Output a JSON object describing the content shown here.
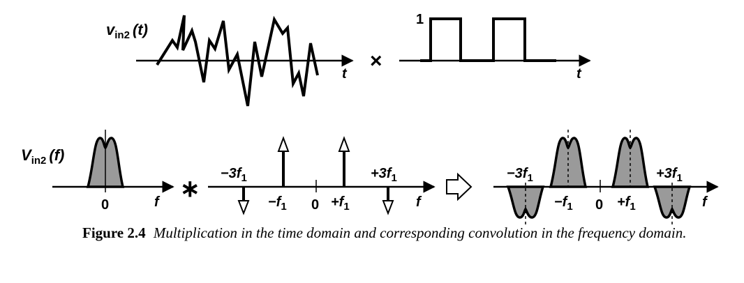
{
  "time_domain": {
    "signal_label_main": "v",
    "signal_label_sub": "in2",
    "signal_label_arg": "(t)",
    "time_axis_label_left": "t",
    "multiply_symbol": "×",
    "pulse_amplitude_label": "1",
    "time_axis_label_right": "t"
  },
  "frequency_domain": {
    "spectrum_label_main": "V",
    "spectrum_label_sub": "in2",
    "spectrum_label_arg": "(f)",
    "origin_label_left": "0",
    "freq_axis_label_left": "f",
    "convolve_symbol": "∗",
    "impulse_labels": {
      "neg3": "−3f",
      "neg3_sub": "1",
      "neg1": "−f",
      "neg1_sub": "1",
      "zero": "0",
      "pos1": "+f",
      "pos1_sub": "1",
      "pos3": "+3f",
      "pos3_sub": "1"
    },
    "freq_axis_label_middle": "f",
    "result_labels": {
      "neg3": "−3f",
      "neg3_sub": "1",
      "neg1": "−f",
      "neg1_sub": "1",
      "zero": "0",
      "pos1": "+f",
      "pos1_sub": "1",
      "pos3": "+3f",
      "pos3_sub": "1"
    },
    "freq_axis_label_right": "f"
  },
  "caption": {
    "figure_label": "Figure 2.4",
    "text": "Multiplication in the time domain and corresponding convolution in the frequency domain."
  }
}
